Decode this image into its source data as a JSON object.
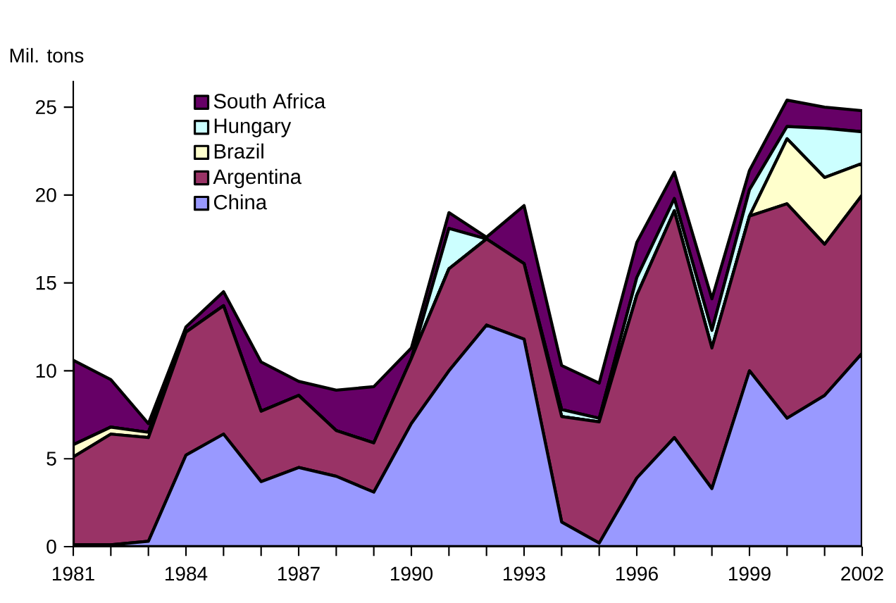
{
  "chart_data": {
    "type": "area",
    "stacked": true,
    "ylabel": "Mil. tons",
    "x": [
      1981,
      1982,
      1983,
      1984,
      1985,
      1986,
      1987,
      1988,
      1989,
      1990,
      1991,
      1992,
      1993,
      1994,
      1995,
      1996,
      1997,
      1998,
      1999,
      2000,
      2001,
      2002
    ],
    "series": [
      {
        "name": "China",
        "color": "#9999ff",
        "values": [
          0.1,
          0.1,
          0.3,
          5.2,
          6.4,
          3.7,
          4.5,
          4.0,
          3.1,
          7.0,
          10.0,
          12.6,
          11.8,
          1.4,
          0.2,
          3.9,
          6.2,
          3.3,
          10.0,
          7.3,
          8.6,
          11.0
        ]
      },
      {
        "name": "Argentina",
        "color": "#993366",
        "values": [
          5.0,
          6.3,
          5.9,
          7.0,
          7.3,
          4.0,
          4.1,
          2.6,
          2.8,
          3.7,
          5.8,
          4.9,
          4.3,
          6.0,
          6.9,
          10.4,
          12.9,
          8.0,
          8.8,
          12.2,
          8.6,
          9.0
        ]
      },
      {
        "name": "Brazil",
        "color": "#ffffcc",
        "values": [
          0.7,
          0.4,
          0.3,
          0,
          0,
          0,
          0,
          0,
          0,
          0,
          0,
          0,
          0,
          0,
          0,
          0,
          0,
          0,
          0,
          3.7,
          3.8,
          1.8
        ]
      },
      {
        "name": "Hungary",
        "color": "#ccffff",
        "values": [
          0,
          0,
          0,
          0,
          0,
          0,
          0,
          0,
          0,
          0,
          2.3,
          0,
          0,
          0.4,
          0.2,
          1.0,
          0.7,
          1.0,
          1.5,
          0.7,
          2.8,
          1.8
        ]
      },
      {
        "name": "South Africa",
        "color": "#660066",
        "values": [
          4.8,
          2.7,
          0.5,
          0.3,
          0.8,
          2.8,
          0.8,
          2.3,
          3.2,
          0.6,
          0.9,
          0.1,
          3.3,
          2.5,
          2.0,
          2.0,
          1.5,
          1.8,
          1.1,
          1.5,
          1.2,
          1.2
        ]
      }
    ],
    "xlim": [
      1981,
      2002
    ],
    "xticks": [
      1981,
      1984,
      1987,
      1990,
      1993,
      1996,
      1999,
      2002
    ],
    "ylim": [
      0,
      26.5
    ],
    "yticks": [
      0,
      5,
      10,
      15,
      20,
      25
    ],
    "legend": "top left",
    "grid": false
  }
}
